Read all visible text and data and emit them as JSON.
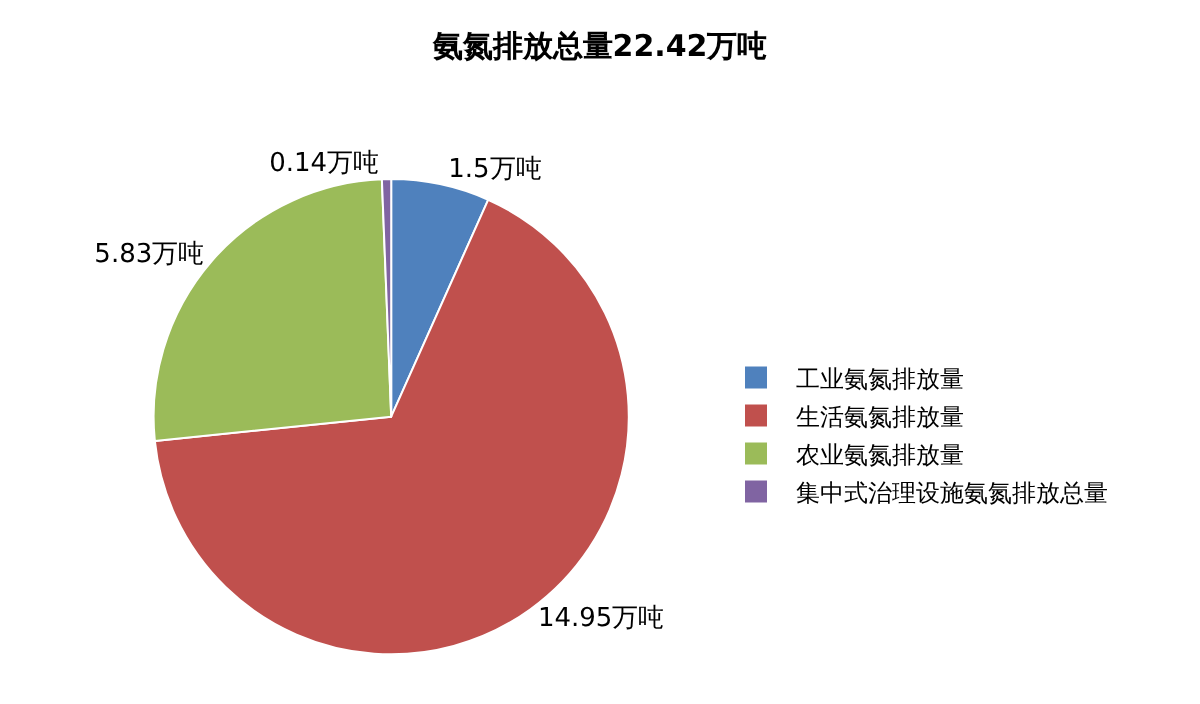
{
  "chart_data": {
    "type": "pie",
    "title": "氨氮排放总量22.42万吨",
    "categories": [
      "工业氨氮排放量",
      "生活氨氮排放量",
      "农业氨氮排放量",
      "集中式治理设施氨氮排放总量"
    ],
    "values": [
      1.5,
      14.95,
      5.83,
      0.14
    ],
    "value_labels": [
      "1.5万吨",
      "14.95万吨",
      "5.83万吨",
      "0.14万吨"
    ],
    "colors": [
      "#4f81bd",
      "#c0504d",
      "#9bbb59",
      "#8064a2"
    ],
    "legend": "right"
  }
}
